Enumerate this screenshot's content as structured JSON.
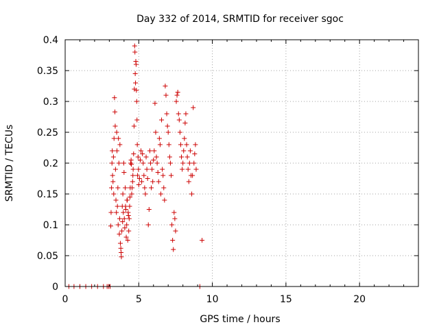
{
  "chart_data": {
    "type": "scatter",
    "title": "Day 332 of 2014, SRMTID for receiver sgoc",
    "xlabel": "GPS time / hours",
    "ylabel": "SRMTID / TECUs",
    "xlim": [
      0,
      24
    ],
    "ylim": [
      0,
      0.4
    ],
    "x_ticks": [
      0,
      5,
      10,
      15,
      20
    ],
    "x_tick_labels": [
      "0",
      "5",
      "10",
      "15",
      "20"
    ],
    "y_ticks": [
      0,
      0.05,
      0.1,
      0.15,
      0.2,
      0.25,
      0.3,
      0.35,
      0.4
    ],
    "y_tick_labels": [
      "0",
      "0.05",
      "0.1",
      "0.15",
      "0.2",
      "0.25",
      "0.3",
      "0.35",
      "0.4"
    ],
    "grid": true,
    "marker": "+",
    "series": [
      {
        "name": "SRMTID",
        "color": "#cc0000",
        "points": [
          [
            0.25,
            0
          ],
          [
            0.6,
            0
          ],
          [
            1.0,
            0
          ],
          [
            1.4,
            0
          ],
          [
            1.8,
            0
          ],
          [
            2.2,
            0
          ],
          [
            2.6,
            0
          ],
          [
            2.85,
            0
          ],
          [
            2.95,
            0
          ],
          [
            3.05,
            0
          ],
          [
            9.15,
            0
          ],
          [
            3.1,
            0.098
          ],
          [
            3.12,
            0.12
          ],
          [
            3.15,
            0.16
          ],
          [
            3.18,
            0.2
          ],
          [
            3.2,
            0.22
          ],
          [
            3.22,
            0.18
          ],
          [
            3.25,
            0.17
          ],
          [
            3.28,
            0.21
          ],
          [
            3.3,
            0.15
          ],
          [
            3.32,
            0.24
          ],
          [
            3.35,
            0.306
          ],
          [
            3.38,
            0.283
          ],
          [
            3.4,
            0.26
          ],
          [
            3.42,
            0.19
          ],
          [
            3.45,
            0.14
          ],
          [
            3.48,
            0.12
          ],
          [
            3.5,
            0.25
          ],
          [
            3.52,
            0.22
          ],
          [
            3.55,
            0.13
          ],
          [
            3.58,
            0.16
          ],
          [
            3.6,
            0.1
          ],
          [
            3.62,
            0.24
          ],
          [
            3.65,
            0.2
          ],
          [
            3.68,
            0.085
          ],
          [
            3.7,
            0.11
          ],
          [
            3.72,
            0.23
          ],
          [
            3.75,
            0.07
          ],
          [
            3.78,
            0.062
          ],
          [
            3.8,
            0.055
          ],
          [
            3.82,
            0.048
          ],
          [
            3.85,
            0.09
          ],
          [
            3.88,
            0.13
          ],
          [
            3.9,
            0.105
          ],
          [
            3.92,
            0.15
          ],
          [
            3.95,
            0.12
          ],
          [
            3.98,
            0.2
          ],
          [
            4.0,
            0.185
          ],
          [
            4.02,
            0.11
          ],
          [
            4.05,
            0.095
          ],
          [
            4.08,
            0.16
          ],
          [
            4.1,
            0.13
          ],
          [
            4.12,
            0.125
          ],
          [
            4.15,
            0.08
          ],
          [
            4.18,
            0.1
          ],
          [
            4.2,
            0.14
          ],
          [
            4.22,
            0.14
          ],
          [
            4.25,
            0.075
          ],
          [
            4.28,
            0.12
          ],
          [
            4.3,
            0.115
          ],
          [
            4.32,
            0.09
          ],
          [
            4.35,
            0.11
          ],
          [
            4.38,
            0.13
          ],
          [
            4.4,
            0.145
          ],
          [
            4.42,
            0.16
          ],
          [
            4.45,
            0.2
          ],
          [
            4.48,
            0.205
          ],
          [
            4.5,
            0.198
          ],
          [
            4.52,
            0.15
          ],
          [
            4.55,
            0.16
          ],
          [
            4.58,
            0.17
          ],
          [
            4.6,
            0.18
          ],
          [
            4.62,
            0.19
          ],
          [
            4.65,
            0.215
          ],
          [
            4.68,
            0.26
          ],
          [
            4.7,
            0.32
          ],
          [
            4.72,
            0.39
          ],
          [
            4.74,
            0.38
          ],
          [
            4.76,
            0.345
          ],
          [
            4.78,
            0.33
          ],
          [
            4.8,
            0.365
          ],
          [
            4.82,
            0.36
          ],
          [
            4.84,
            0.318
          ],
          [
            4.86,
            0.3
          ],
          [
            4.88,
            0.27
          ],
          [
            4.9,
            0.23
          ],
          [
            4.92,
            0.18
          ],
          [
            4.95,
            0.21
          ],
          [
            4.98,
            0.19
          ],
          [
            5.0,
            0.165
          ],
          [
            5.05,
            0.175
          ],
          [
            5.1,
            0.205
          ],
          [
            5.15,
            0.22
          ],
          [
            5.2,
            0.17
          ],
          [
            5.25,
            0.215
          ],
          [
            5.3,
            0.2
          ],
          [
            5.35,
            0.18
          ],
          [
            5.4,
            0.16
          ],
          [
            5.45,
            0.15
          ],
          [
            5.5,
            0.21
          ],
          [
            5.55,
            0.19
          ],
          [
            5.6,
            0.175
          ],
          [
            5.65,
            0.1
          ],
          [
            5.7,
            0.125
          ],
          [
            5.75,
            0.22
          ],
          [
            5.8,
            0.2
          ],
          [
            5.85,
            0.16
          ],
          [
            5.9,
            0.19
          ],
          [
            5.95,
            0.17
          ],
          [
            6.0,
            0.205
          ],
          [
            6.05,
            0.22
          ],
          [
            6.1,
            0.297
          ],
          [
            6.15,
            0.25
          ],
          [
            6.2,
            0.21
          ],
          [
            6.25,
            0.2
          ],
          [
            6.3,
            0.185
          ],
          [
            6.35,
            0.17
          ],
          [
            6.4,
            0.24
          ],
          [
            6.45,
            0.23
          ],
          [
            6.5,
            0.15
          ],
          [
            6.55,
            0.27
          ],
          [
            6.6,
            0.19
          ],
          [
            6.65,
            0.18
          ],
          [
            6.7,
            0.16
          ],
          [
            6.75,
            0.14
          ],
          [
            6.8,
            0.325
          ],
          [
            6.85,
            0.31
          ],
          [
            6.9,
            0.28
          ],
          [
            6.95,
            0.26
          ],
          [
            7.0,
            0.25
          ],
          [
            7.05,
            0.23
          ],
          [
            7.1,
            0.21
          ],
          [
            7.15,
            0.2
          ],
          [
            7.2,
            0.18
          ],
          [
            7.25,
            0.1
          ],
          [
            7.3,
            0.075
          ],
          [
            7.35,
            0.06
          ],
          [
            7.4,
            0.12
          ],
          [
            7.45,
            0.11
          ],
          [
            7.5,
            0.09
          ],
          [
            7.55,
            0.3
          ],
          [
            7.6,
            0.31
          ],
          [
            7.65,
            0.315
          ],
          [
            7.7,
            0.28
          ],
          [
            7.75,
            0.27
          ],
          [
            7.8,
            0.25
          ],
          [
            7.85,
            0.23
          ],
          [
            7.9,
            0.21
          ],
          [
            7.95,
            0.19
          ],
          [
            8.0,
            0.2
          ],
          [
            8.05,
            0.22
          ],
          [
            8.1,
            0.24
          ],
          [
            8.15,
            0.265
          ],
          [
            8.2,
            0.28
          ],
          [
            8.25,
            0.23
          ],
          [
            8.3,
            0.21
          ],
          [
            8.35,
            0.19
          ],
          [
            8.4,
            0.17
          ],
          [
            8.45,
            0.2
          ],
          [
            8.5,
            0.22
          ],
          [
            8.55,
            0.18
          ],
          [
            8.6,
            0.15
          ],
          [
            8.65,
            0.18
          ],
          [
            8.7,
            0.29
          ],
          [
            8.75,
            0.2
          ],
          [
            8.8,
            0.215
          ],
          [
            8.85,
            0.23
          ],
          [
            8.9,
            0.19
          ],
          [
            9.3,
            0.075
          ]
        ]
      }
    ]
  }
}
